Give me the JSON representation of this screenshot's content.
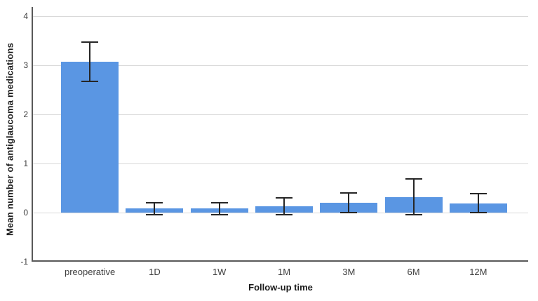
{
  "chart_data": {
    "type": "bar",
    "title": "",
    "xlabel": "Follow-up time",
    "ylabel": "Mean number of antiglaucoma medications",
    "categories": [
      "preoperative",
      "1D",
      "1W",
      "1M",
      "3M",
      "6M",
      "12M"
    ],
    "values": [
      3.07,
      0.08,
      0.08,
      0.13,
      0.2,
      0.32,
      0.19
    ],
    "error_low": [
      2.66,
      -0.06,
      -0.06,
      -0.05,
      -0.01,
      -0.06,
      -0.02
    ],
    "error_high": [
      3.48,
      0.22,
      0.22,
      0.31,
      0.41,
      0.7,
      0.4
    ],
    "ylim": [
      -1,
      4
    ],
    "yticks": [
      4,
      3,
      2,
      1,
      0,
      -1
    ],
    "grid": true,
    "legend": "none",
    "bar_color": "#5A96E3",
    "error_bar_color": "#262626",
    "axis_color": "#595959",
    "grid_color": "#D9D9D9",
    "background_color": "#FFFFFF"
  }
}
